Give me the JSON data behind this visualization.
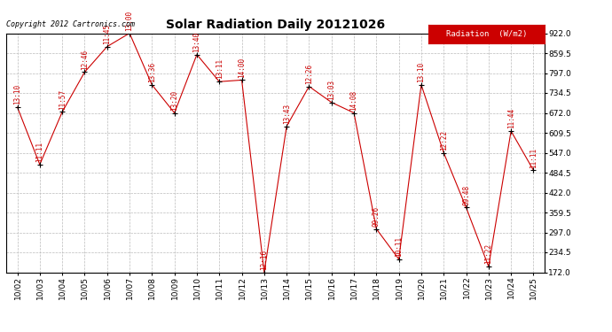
{
  "title": "Solar Radiation Daily 20121026",
  "copyright": "Copyright 2012 Cartronics.com",
  "legend_label": "Radiation  (W/m2)",
  "x_labels": [
    "10/02",
    "10/03",
    "10/04",
    "10/05",
    "10/06",
    "10/07",
    "10/08",
    "10/09",
    "10/10",
    "10/11",
    "10/12",
    "10/13",
    "10/14",
    "10/15",
    "10/16",
    "10/17",
    "10/18",
    "10/19",
    "10/20",
    "10/21",
    "10/22",
    "10/23",
    "10/24",
    "10/25"
  ],
  "y_values": [
    690,
    510,
    675,
    800,
    880,
    922,
    760,
    672,
    855,
    770,
    775,
    172,
    630,
    755,
    705,
    672,
    308,
    213,
    760,
    547,
    375,
    190,
    615,
    492
  ],
  "time_labels": [
    "13:10",
    "11:11",
    "11:57",
    "12:46",
    "11:45",
    "13:00",
    "13:36",
    "13:20",
    "13:40",
    "13:11",
    "14:00",
    "12:16",
    "13:43",
    "12:26",
    "13:03",
    "14:08",
    "09:26",
    "10:11",
    "13:10",
    "12:22",
    "09:48",
    "11:22",
    "11:44",
    "11:11"
  ],
  "ylim": [
    172.0,
    922.0
  ],
  "yticks": [
    172.0,
    234.5,
    297.0,
    359.5,
    422.0,
    484.5,
    547.0,
    609.5,
    672.0,
    734.5,
    797.0,
    859.5,
    922.0
  ],
  "line_color": "#cc0000",
  "marker_color": "#000000",
  "bg_color": "#ffffff",
  "grid_color": "#bbbbbb",
  "text_color": "#cc0000",
  "title_color": "#000000",
  "legend_bg": "#cc0000",
  "legend_text": "#ffffff"
}
